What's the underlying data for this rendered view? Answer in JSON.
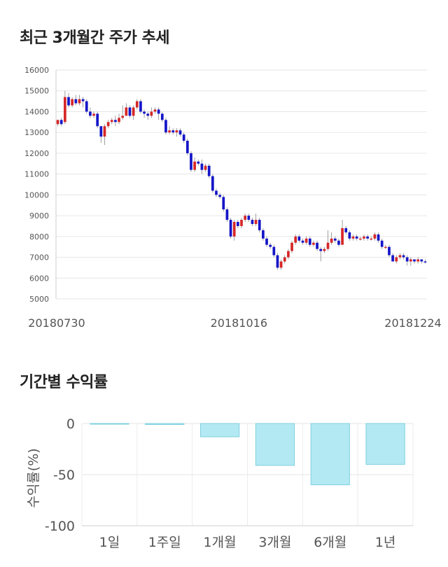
{
  "chart_data": [
    {
      "type": "candlestick",
      "title": "최근 3개월간 주가 추세",
      "ylim": [
        5000,
        16000
      ],
      "yticks": [
        5000,
        6000,
        7000,
        8000,
        9000,
        10000,
        11000,
        12000,
        13000,
        14000,
        15000,
        16000
      ],
      "xticks": [
        "20180730",
        "20181016",
        "20181224"
      ],
      "colors": {
        "up": "#d62728",
        "down": "#1515c8",
        "grid": "#e6e6e6"
      },
      "series": [
        [
          13400,
          13600,
          13300,
          13600
        ],
        [
          13600,
          13400,
          13300,
          13700
        ],
        [
          13500,
          14700,
          13400,
          15000
        ],
        [
          14700,
          14300,
          14200,
          14900
        ],
        [
          14300,
          14600,
          14200,
          14700
        ],
        [
          14600,
          14400,
          14300,
          14800
        ],
        [
          14400,
          14600,
          14300,
          14800
        ],
        [
          14600,
          14500,
          14200,
          14700
        ],
        [
          14500,
          14000,
          13900,
          14600
        ],
        [
          14000,
          13800,
          13700,
          14200
        ],
        [
          13800,
          13900,
          13700,
          14000
        ],
        [
          13900,
          13300,
          13200,
          14000
        ],
        [
          13300,
          12800,
          12500,
          13300
        ],
        [
          12800,
          13300,
          12400,
          13400
        ],
        [
          13300,
          13500,
          13200,
          13600
        ],
        [
          13500,
          13600,
          13400,
          13700
        ],
        [
          13600,
          13500,
          13300,
          13800
        ],
        [
          13500,
          13700,
          13400,
          13900
        ],
        [
          13700,
          13800,
          13600,
          14300
        ],
        [
          13800,
          14200,
          13800,
          14400
        ],
        [
          14200,
          13800,
          13700,
          14300
        ],
        [
          13800,
          14200,
          13600,
          14300
        ],
        [
          14200,
          14500,
          14100,
          14600
        ],
        [
          14500,
          14000,
          13900,
          14600
        ],
        [
          14000,
          13900,
          13700,
          14100
        ],
        [
          13900,
          13800,
          13600,
          14000
        ],
        [
          13800,
          14000,
          13700,
          14200
        ],
        [
          14000,
          14100,
          13900,
          14200
        ],
        [
          14100,
          13900,
          13600,
          14200
        ],
        [
          13900,
          13600,
          13500,
          14000
        ],
        [
          13600,
          13000,
          12900,
          13700
        ],
        [
          13000,
          13100,
          12900,
          13300
        ],
        [
          13100,
          13000,
          12900,
          13200
        ],
        [
          13000,
          13100,
          12800,
          13200
        ],
        [
          13100,
          12900,
          12800,
          13200
        ],
        [
          12900,
          12600,
          12500,
          13000
        ],
        [
          12600,
          12000,
          11900,
          12700
        ],
        [
          12000,
          11200,
          11100,
          12100
        ],
        [
          11200,
          11600,
          11100,
          11800
        ],
        [
          11600,
          11500,
          11400,
          11700
        ],
        [
          11500,
          11200,
          11000,
          11700
        ],
        [
          11200,
          11400,
          11100,
          11500
        ],
        [
          11400,
          10900,
          10800,
          11500
        ],
        [
          10900,
          10200,
          10100,
          11000
        ],
        [
          10200,
          10000,
          9900,
          10300
        ],
        [
          10000,
          9900,
          9800,
          10100
        ],
        [
          9900,
          9300,
          9200,
          10000
        ],
        [
          9300,
          8800,
          8700,
          9400
        ],
        [
          8800,
          8000,
          7900,
          8900
        ],
        [
          8000,
          8700,
          7800,
          8800
        ],
        [
          8700,
          8500,
          8400,
          8800
        ],
        [
          8500,
          8800,
          8400,
          8900
        ],
        [
          8800,
          9000,
          8700,
          9100
        ],
        [
          9000,
          8800,
          8700,
          9100
        ],
        [
          8800,
          8600,
          8500,
          8900
        ],
        [
          8600,
          8800,
          8500,
          9100
        ],
        [
          8800,
          8300,
          8200,
          8900
        ],
        [
          8300,
          7900,
          7800,
          8400
        ],
        [
          7900,
          7600,
          7500,
          8000
        ],
        [
          7600,
          7500,
          7400,
          7700
        ],
        [
          7500,
          7100,
          7000,
          7600
        ],
        [
          7100,
          6500,
          6400,
          7200
        ],
        [
          6500,
          6800,
          6400,
          6900
        ],
        [
          6800,
          7000,
          6700,
          7100
        ],
        [
          7000,
          7300,
          6900,
          7400
        ],
        [
          7300,
          7700,
          7200,
          7800
        ],
        [
          7700,
          8000,
          7600,
          8100
        ],
        [
          8000,
          7800,
          7700,
          8100
        ],
        [
          7800,
          7700,
          7600,
          7900
        ],
        [
          7700,
          7900,
          7600,
          8000
        ],
        [
          7900,
          7600,
          7500,
          8000
        ],
        [
          7600,
          7700,
          7500,
          7800
        ],
        [
          7700,
          7400,
          7300,
          7800
        ],
        [
          7400,
          7300,
          6800,
          7500
        ],
        [
          7300,
          7400,
          7200,
          7500
        ],
        [
          7400,
          7700,
          7300,
          8300
        ],
        [
          7700,
          7900,
          7600,
          8200
        ],
        [
          7900,
          7800,
          7700,
          8000
        ],
        [
          7800,
          7600,
          7500,
          7900
        ],
        [
          7600,
          8400,
          7600,
          8800
        ],
        [
          8400,
          8200,
          8100,
          8500
        ],
        [
          8200,
          7900,
          7800,
          8300
        ],
        [
          7900,
          8000,
          7800,
          8100
        ],
        [
          8000,
          7900,
          7800,
          8100
        ],
        [
          7900,
          7900,
          7800,
          8000
        ],
        [
          7900,
          8000,
          7800,
          8100
        ],
        [
          8000,
          7900,
          7800,
          8100
        ],
        [
          7900,
          7900,
          7800,
          8000
        ],
        [
          7900,
          8100,
          7800,
          8200
        ],
        [
          8100,
          7800,
          7700,
          8200
        ],
        [
          7800,
          7500,
          7400,
          7900
        ],
        [
          7500,
          7500,
          7400,
          7600
        ],
        [
          7500,
          7100,
          7000,
          7600
        ],
        [
          7100,
          6800,
          6800,
          7200
        ],
        [
          6800,
          7000,
          6700,
          7100
        ],
        [
          7000,
          7100,
          6900,
          7200
        ],
        [
          7100,
          7000,
          6900,
          7200
        ],
        [
          7000,
          6800,
          6600,
          7100
        ],
        [
          6800,
          6900,
          6600,
          7000
        ],
        [
          6900,
          6800,
          6700,
          6900
        ],
        [
          6800,
          6900,
          6700,
          7000
        ],
        [
          6900,
          6800,
          6700,
          6900
        ],
        [
          6800,
          6750,
          6700,
          6900
        ]
      ]
    },
    {
      "type": "bar",
      "title": "기간별 수익률",
      "categories": [
        "1일",
        "1주일",
        "1개월",
        "3개월",
        "6개월",
        "1년"
      ],
      "values": [
        0,
        -1,
        -13,
        -41,
        -60,
        -40
      ],
      "ylabel": "수익률(%)",
      "ylim": [
        -100,
        0
      ],
      "yticks": [
        0,
        -50,
        -100
      ],
      "colors": {
        "bar": "#b3e9f3",
        "bar_edge": "#7fcfdf",
        "grid": "#e6e6e6"
      }
    }
  ]
}
